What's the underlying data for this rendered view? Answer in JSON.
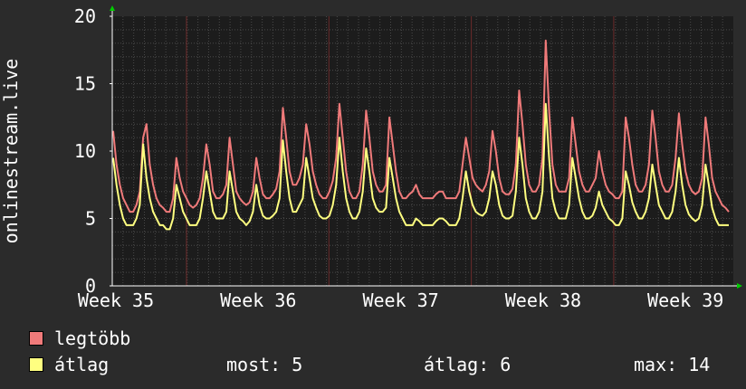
{
  "chart_data": {
    "type": "line",
    "ylabel": "onlinestream.live",
    "y_ticks": [
      "20",
      "15",
      "10",
      "5",
      "0"
    ],
    "ylim": [
      0,
      20
    ],
    "x_ticks": [
      "Week 35",
      "Week 36",
      "Week 37",
      "Week 38",
      "Week 39"
    ],
    "grid": true,
    "colors": {
      "background": "#2b2b2b",
      "plot_bg": "#1c1c1c",
      "grid": "#4a4a4a",
      "week_line": "#6b2a2a",
      "axis": "#ffffff",
      "arrow": "#00cc00",
      "max_series": "#f07a7a",
      "avg_series": "#ffff80"
    },
    "series": [
      {
        "name": "legtöbb",
        "color": "#f07a7a",
        "values": [
          11.5,
          9.0,
          7.5,
          6.5,
          6.0,
          5.5,
          5.5,
          6.0,
          7.0,
          11.0,
          12.0,
          9.0,
          7.5,
          6.5,
          6.0,
          5.8,
          5.5,
          5.5,
          6.5,
          9.5,
          8.0,
          7.0,
          6.5,
          6.0,
          5.8,
          6.0,
          6.5,
          8.0,
          10.5,
          9.0,
          7.0,
          6.5,
          6.5,
          6.8,
          7.5,
          11.0,
          9.0,
          7.0,
          6.5,
          6.2,
          6.0,
          6.2,
          7.0,
          9.5,
          8.0,
          6.8,
          6.5,
          6.5,
          6.8,
          7.2,
          8.5,
          13.2,
          11.0,
          8.5,
          7.5,
          7.5,
          8.0,
          9.0,
          12.0,
          10.5,
          8.5,
          7.5,
          6.8,
          6.5,
          6.5,
          7.0,
          7.8,
          9.5,
          13.5,
          11.0,
          8.5,
          7.0,
          6.5,
          6.5,
          7.0,
          9.0,
          13.0,
          11.0,
          8.5,
          7.5,
          7.0,
          7.0,
          7.5,
          12.5,
          10.5,
          8.5,
          7.0,
          6.5,
          6.5,
          6.8,
          7.0,
          7.5,
          6.8,
          6.5,
          6.5,
          6.5,
          6.5,
          6.8,
          7.0,
          7.0,
          6.5,
          6.5,
          6.5,
          6.5,
          7.0,
          9.0,
          11.0,
          9.5,
          8.0,
          7.5,
          7.2,
          7.0,
          7.5,
          8.5,
          11.5,
          10.0,
          8.0,
          7.0,
          6.8,
          6.8,
          7.2,
          9.0,
          14.5,
          12.0,
          9.0,
          7.5,
          7.0,
          7.0,
          7.5,
          9.5,
          18.2,
          13.0,
          9.0,
          7.5,
          7.0,
          7.0,
          7.0,
          8.0,
          12.5,
          10.5,
          8.5,
          7.5,
          7.0,
          7.0,
          7.5,
          8.0,
          10.0,
          8.5,
          7.5,
          7.0,
          6.8,
          6.5,
          6.5,
          7.0,
          12.5,
          11.0,
          9.0,
          7.5,
          7.0,
          7.0,
          7.5,
          9.0,
          13.0,
          11.0,
          8.5,
          7.5,
          7.0,
          7.0,
          7.5,
          9.5,
          12.8,
          10.5,
          8.5,
          7.5,
          7.0,
          6.8,
          7.0,
          8.0,
          12.5,
          10.5,
          8.0,
          7.0,
          6.5,
          6.0,
          5.8,
          5.5
        ]
      },
      {
        "name": "átlag",
        "color": "#ffff80",
        "values": [
          9.5,
          7.5,
          6.0,
          5.0,
          4.5,
          4.5,
          4.5,
          5.0,
          6.0,
          10.5,
          8.0,
          6.5,
          5.5,
          5.0,
          4.5,
          4.5,
          4.2,
          4.2,
          5.0,
          7.5,
          6.5,
          5.5,
          5.0,
          4.5,
          4.5,
          4.5,
          5.0,
          6.5,
          8.5,
          7.0,
          5.5,
          5.0,
          5.0,
          5.0,
          5.5,
          8.5,
          7.0,
          5.5,
          5.0,
          4.8,
          4.5,
          4.8,
          5.5,
          7.5,
          6.0,
          5.2,
          5.0,
          5.0,
          5.2,
          5.5,
          6.5,
          10.8,
          8.5,
          6.5,
          5.5,
          5.5,
          6.0,
          6.5,
          9.5,
          8.0,
          6.5,
          5.8,
          5.2,
          5.0,
          5.0,
          5.2,
          6.0,
          7.5,
          11.0,
          8.5,
          6.5,
          5.5,
          5.0,
          5.0,
          5.5,
          7.0,
          10.2,
          8.5,
          6.5,
          5.8,
          5.5,
          5.5,
          5.8,
          9.5,
          8.0,
          6.5,
          5.5,
          5.0,
          4.5,
          4.5,
          4.5,
          5.0,
          4.8,
          4.5,
          4.5,
          4.5,
          4.5,
          4.8,
          5.0,
          5.0,
          4.8,
          4.5,
          4.5,
          4.5,
          5.0,
          6.5,
          8.5,
          7.0,
          6.0,
          5.5,
          5.3,
          5.2,
          5.5,
          6.5,
          8.5,
          7.5,
          6.0,
          5.2,
          5.0,
          5.0,
          5.2,
          7.0,
          11.0,
          9.0,
          6.5,
          5.5,
          5.0,
          5.0,
          5.5,
          7.0,
          13.5,
          9.5,
          6.5,
          5.5,
          5.0,
          5.0,
          5.0,
          6.0,
          9.5,
          8.0,
          6.5,
          5.5,
          5.0,
          5.0,
          5.2,
          5.8,
          7.0,
          6.0,
          5.5,
          5.0,
          4.8,
          4.5,
          4.5,
          5.0,
          8.5,
          7.5,
          6.2,
          5.5,
          5.0,
          5.0,
          5.5,
          6.5,
          9.0,
          7.5,
          6.0,
          5.5,
          5.0,
          5.0,
          5.5,
          7.0,
          9.5,
          7.5,
          6.0,
          5.3,
          5.0,
          4.8,
          5.0,
          6.0,
          9.0,
          7.5,
          5.8,
          5.0,
          4.5,
          4.5,
          4.5,
          4.5
        ]
      }
    ]
  },
  "legend": {
    "max_label": "legtöbb",
    "avg_label": "átlag"
  },
  "stats": {
    "now_label": "most:",
    "now_value": "5",
    "avg_label": "átlag:",
    "avg_value": "6",
    "max_label": "max:",
    "max_value": "14"
  }
}
